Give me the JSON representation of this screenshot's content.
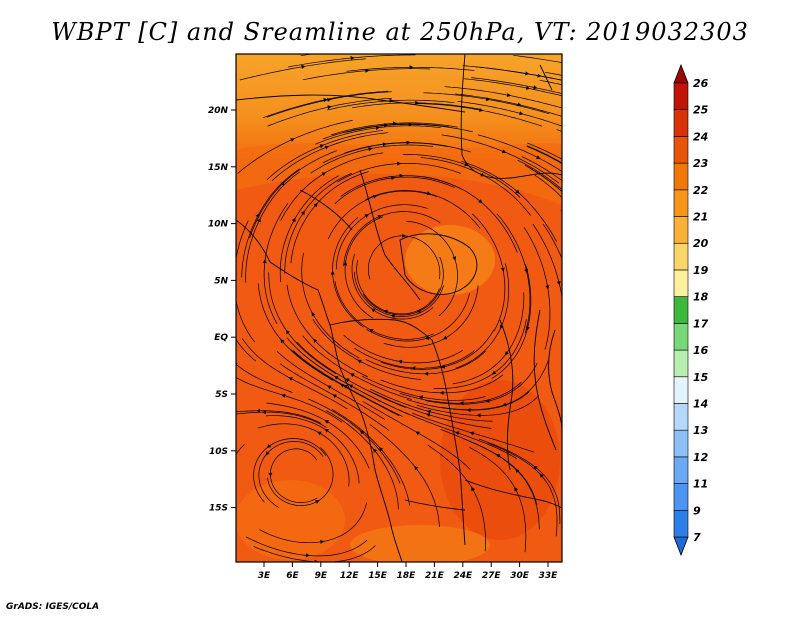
{
  "title": "WBPT [C] and Sreamline at 250hPa, VT: 2019032303",
  "footer": "GrADS: IGES/COLA",
  "axes": {
    "lat_labels": [
      "20N",
      "15N",
      "10N",
      "5N",
      "EQ",
      "5S",
      "10S",
      "15S"
    ],
    "lon_labels": [
      "3E",
      "6E",
      "9E",
      "12E",
      "15E",
      "18E",
      "21E",
      "24E",
      "27E",
      "30E",
      "33E"
    ]
  },
  "colorbar": {
    "levels": [
      "7",
      "9",
      "11",
      "12",
      "13",
      "14",
      "15",
      "16",
      "17",
      "18",
      "19",
      "20",
      "21",
      "22",
      "23",
      "24",
      "25",
      "26"
    ],
    "colors": [
      "#1e6ad6",
      "#2e7ee8",
      "#4a96f0",
      "#6aaaf4",
      "#8ec0f8",
      "#b4d8fa",
      "#e4f4fc",
      "#b8eeb0",
      "#78d878",
      "#3cb83c",
      "#fff0a0",
      "#fad66a",
      "#f8b238",
      "#f59618",
      "#f07808",
      "#e85408",
      "#d83208",
      "#c01408",
      "#9c0808"
    ]
  },
  "map": {
    "field": "WBPT",
    "level": "250hPa",
    "field_colors": {
      "warm": "#f05a12",
      "mid": "#f36d10",
      "cool": "#f7a32a",
      "hot": "#e8440a"
    }
  }
}
